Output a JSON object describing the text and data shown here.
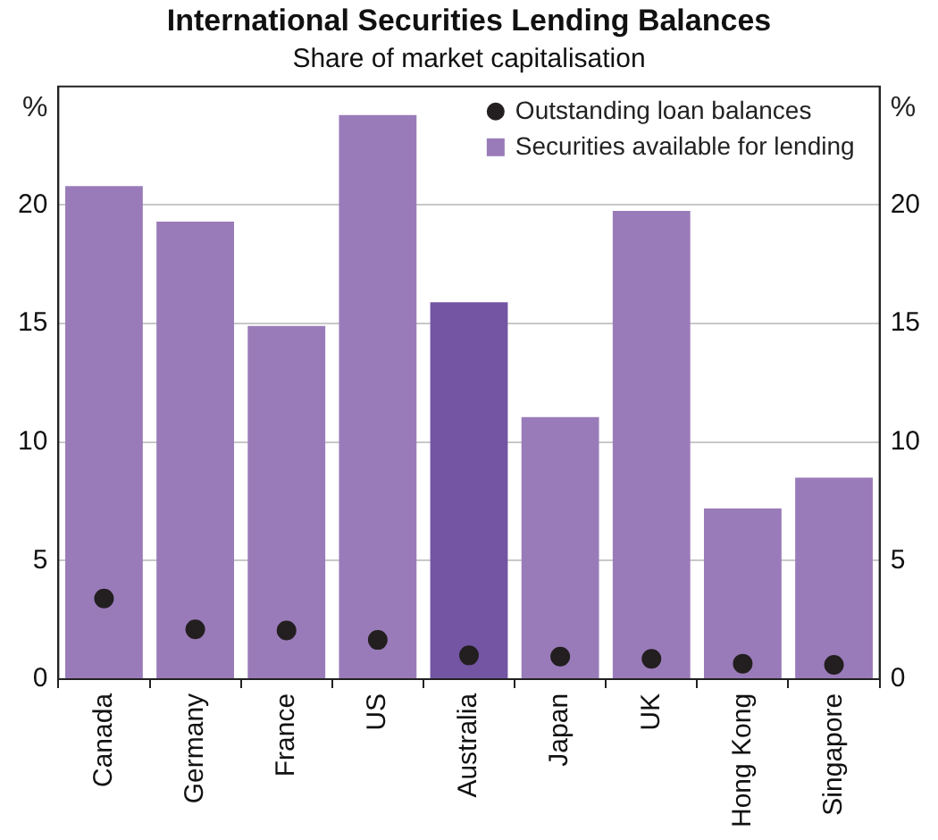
{
  "chart_data": {
    "type": "bar",
    "title": "International Securities Lending Balances",
    "subtitle": "Share of market capitalisation",
    "ylabel": "%",
    "y2label": "%",
    "categories": [
      "Canada",
      "Germany",
      "France",
      "US",
      "Australia",
      "Japan",
      "UK",
      "Hong Kong",
      "Singapore"
    ],
    "series": [
      {
        "name": "Outstanding loan balances",
        "type": "scatter",
        "color": "#231f20",
        "values": [
          3.4,
          2.1,
          2.05,
          1.65,
          1.0,
          0.95,
          0.85,
          0.65,
          0.6
        ]
      },
      {
        "name": "Securities available for lending",
        "color": "#9a7bb9",
        "colors": [
          "#9a7bb9",
          "#9a7bb9",
          "#9a7bb9",
          "#9a7bb9",
          "#7455a3",
          "#9a7bb9",
          "#9a7bb9",
          "#9a7bb9",
          "#9a7bb9"
        ],
        "values": [
          20.8,
          19.3,
          14.9,
          23.8,
          15.9,
          11.05,
          19.75,
          7.2,
          8.5
        ]
      }
    ],
    "ylim": [
      0,
      25
    ],
    "yticks": [
      0,
      5,
      10,
      15,
      20
    ],
    "y2lim": [
      0,
      25
    ],
    "y2ticks": [
      0,
      5,
      10,
      15,
      20
    ],
    "grid": "y",
    "legend": "top right",
    "marker": "circle"
  }
}
